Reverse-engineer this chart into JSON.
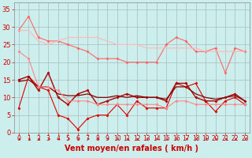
{
  "bg_color": "#cceeed",
  "grid_color": "#aabbbb",
  "xlabel": "Vent moyen/en rafales ( km/h )",
  "xlabel_color": "#cc0000",
  "xlabel_fontsize": 7,
  "xtick_fontsize": 5.5,
  "ytick_fontsize": 6,
  "ytick_color": "#cc0000",
  "xtick_color": "#cc0000",
  "xlim": [
    -0.5,
    23.5
  ],
  "ylim": [
    0,
    37
  ],
  "yticks": [
    0,
    5,
    10,
    15,
    20,
    25,
    30,
    35
  ],
  "xticks": [
    0,
    1,
    2,
    3,
    4,
    5,
    6,
    7,
    8,
    9,
    10,
    11,
    12,
    13,
    14,
    15,
    16,
    17,
    18,
    19,
    20,
    21,
    22,
    23
  ],
  "lines": [
    {
      "x": [
        0,
        1,
        2,
        3,
        4,
        5,
        6,
        7,
        8,
        9,
        10,
        11,
        12,
        13,
        14,
        15,
        16,
        17,
        18,
        19,
        20,
        21,
        22,
        23
      ],
      "y": [
        7,
        16,
        13,
        12,
        5,
        4,
        1,
        4,
        5,
        5,
        8,
        5,
        9,
        7,
        7,
        7,
        14,
        13,
        14,
        9,
        6,
        9,
        10,
        8
      ],
      "color": "#dd0000",
      "lw": 0.8,
      "marker": "D",
      "ms": 1.5
    },
    {
      "x": [
        0,
        1,
        2,
        3,
        4,
        5,
        6,
        7,
        8,
        9,
        10,
        11,
        12,
        13,
        14,
        15,
        16,
        17,
        18,
        19,
        20,
        21,
        22,
        23
      ],
      "y": [
        15,
        16,
        12,
        17,
        10,
        8,
        11,
        12,
        8,
        9,
        10,
        11,
        10,
        10,
        10,
        9,
        14,
        14,
        10,
        9,
        9,
        10,
        11,
        9
      ],
      "color": "#aa0000",
      "lw": 1.0,
      "marker": "D",
      "ms": 1.5
    },
    {
      "x": [
        0,
        1,
        2,
        3,
        4,
        5,
        6,
        7,
        8,
        9,
        10,
        11,
        12,
        13,
        14,
        15,
        16,
        17,
        18,
        19,
        20,
        21,
        22,
        23
      ],
      "y": [
        14.5,
        15,
        13,
        13,
        11,
        10.5,
        10.5,
        11,
        10,
        10,
        10.5,
        10,
        10.5,
        10,
        10,
        9.5,
        13,
        13,
        11,
        10,
        9.5,
        10,
        10.5,
        9
      ],
      "color": "#880000",
      "lw": 0.9,
      "marker": null,
      "ms": 0
    },
    {
      "x": [
        0,
        1,
        2,
        3,
        4,
        5,
        6,
        7,
        8,
        9,
        10,
        11,
        12,
        13,
        14,
        15,
        16,
        17,
        18,
        19,
        20,
        21,
        22,
        23
      ],
      "y": [
        23,
        21,
        13,
        13,
        12,
        9,
        9,
        9,
        8,
        8,
        8,
        8,
        8,
        8,
        8,
        7,
        9,
        9,
        8,
        8,
        8,
        8,
        8,
        8
      ],
      "color": "#ff8888",
      "lw": 0.8,
      "marker": "D",
      "ms": 1.5
    },
    {
      "x": [
        0,
        1,
        2,
        3,
        4,
        5,
        6,
        7,
        8,
        9,
        10,
        11,
        12,
        13,
        14,
        15,
        16,
        17,
        18,
        19,
        20,
        21,
        22,
        23
      ],
      "y": [
        29,
        33,
        27,
        26,
        26,
        25,
        24,
        23,
        21,
        21,
        21,
        20,
        20,
        20,
        20,
        25,
        27,
        26,
        23,
        23,
        24,
        17,
        24,
        23
      ],
      "color": "#ff6666",
      "lw": 0.8,
      "marker": "D",
      "ms": 1.5
    },
    {
      "x": [
        0,
        1,
        2,
        3,
        4,
        5,
        6,
        7,
        8,
        9,
        10,
        11,
        12,
        13,
        14,
        15,
        16,
        17,
        18,
        19,
        20,
        21,
        22,
        23
      ],
      "y": [
        29,
        29,
        26,
        25,
        26,
        27,
        27,
        27,
        27,
        26,
        25,
        25,
        25,
        24,
        24,
        24,
        24,
        24,
        24,
        23,
        23,
        23,
        23,
        23
      ],
      "color": "#ffbbbb",
      "lw": 0.9,
      "marker": null,
      "ms": 0
    }
  ]
}
